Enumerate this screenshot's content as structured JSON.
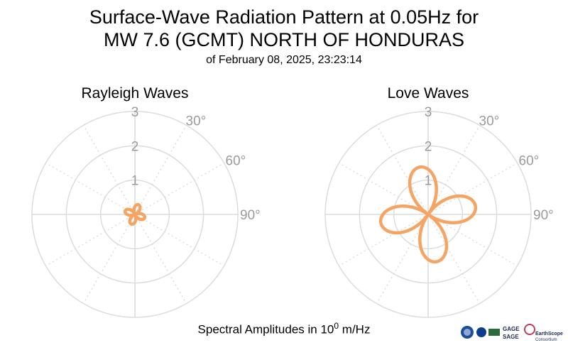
{
  "title_line1": "Surface-Wave Radiation Pattern at 0.05Hz for",
  "title_line2": "MW 7.6 (GCMT) NORTH OF HONDURAS",
  "title_line3": "of February 08, 2025, 23:23:14",
  "footer": {
    "prefix": "Spectral Amplitudes in 10",
    "exponent": "0",
    "unit": " m/Hz"
  },
  "logos": {
    "gage": "GAGE",
    "sage": "SAGE",
    "earthscope": "EarthScope",
    "consortium": "Consortium"
  },
  "colors": {
    "pattern": "#f5a464",
    "grid": "#dcdcdc",
    "labels": "#9a9a9a"
  },
  "chart_data": [
    {
      "type": "polar",
      "title": "Rayleigh Waves",
      "radial_ticks": [
        "1",
        "2",
        "3"
      ],
      "radial_range": [
        0,
        3
      ],
      "angle_ticks": [
        "30°",
        "60°",
        "90°"
      ],
      "grid": true,
      "pattern": {
        "shape": "four-lobe",
        "max_amplitude": 0.3,
        "lobe_azimuths_deg": [
          20,
          110,
          200,
          290
        ]
      }
    },
    {
      "type": "polar",
      "title": "Love Waves",
      "radial_ticks": [
        "1",
        "2",
        "3"
      ],
      "radial_range": [
        0,
        3
      ],
      "angle_ticks": [
        "30°",
        "60°",
        "90°"
      ],
      "grid": true,
      "pattern": {
        "shape": "four-lobe",
        "max_amplitude": 1.4,
        "lobe_azimuths_deg": [
          -10,
          80,
          170,
          260
        ]
      }
    }
  ]
}
